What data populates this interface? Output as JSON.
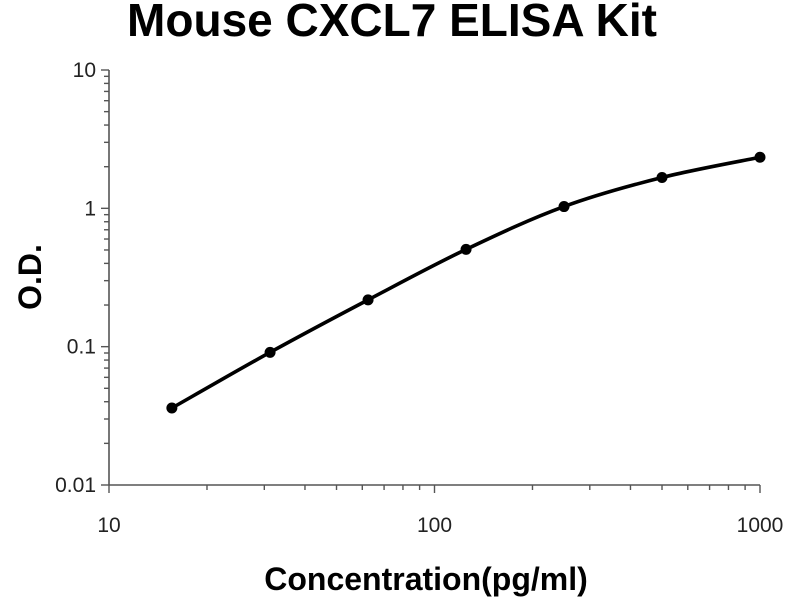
{
  "chart_data": {
    "type": "scatter",
    "title": "Mouse CXCL7 ELISA Kit",
    "xlabel": "Concentration(pg/ml)",
    "ylabel": "O.D.",
    "xscale": "log",
    "yscale": "log",
    "xlim": [
      10,
      1000
    ],
    "ylim": [
      0.01,
      10
    ],
    "xticks": [
      "10",
      "100",
      "1000"
    ],
    "yticks": [
      "10",
      "1",
      "0.1",
      "0.01"
    ],
    "grid": false,
    "legend": "none",
    "series": [
      {
        "x": [
          15.6,
          31.25,
          62.5,
          125,
          250,
          500,
          1000
        ],
        "y": [
          0.036,
          0.091,
          0.218,
          0.505,
          1.03,
          1.67,
          2.34
        ],
        "fit": "smooth curve"
      }
    ]
  }
}
